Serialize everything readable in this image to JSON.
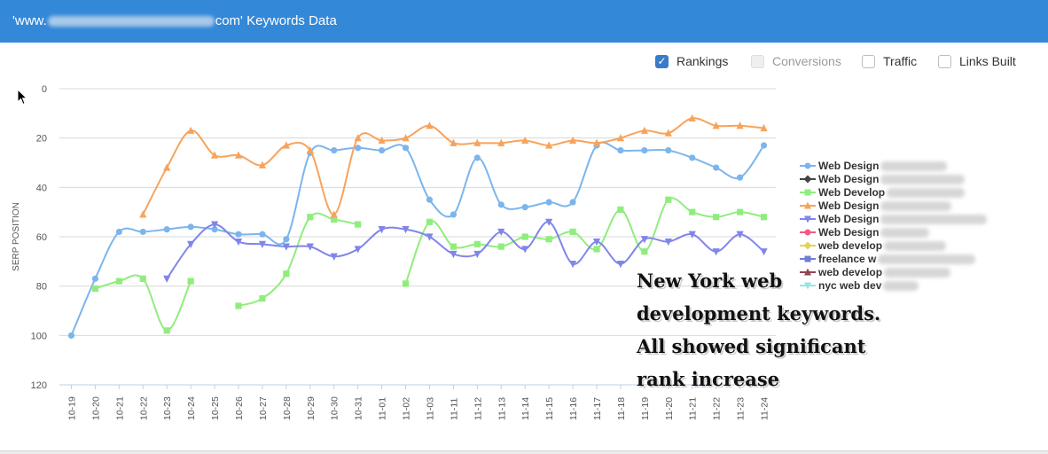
{
  "header": {
    "title_prefix": "'www.",
    "title_suffix": "com' Keywords Data"
  },
  "toggles": [
    {
      "label": "Rankings",
      "checked": true,
      "disabled": false
    },
    {
      "label": "Conversions",
      "checked": false,
      "disabled": true
    },
    {
      "label": "Traffic",
      "checked": false,
      "disabled": false
    },
    {
      "label": "Links Built",
      "checked": false,
      "disabled": false
    }
  ],
  "annotation": "New York web development keywords. All showed significant rank increase",
  "chart_data": {
    "type": "line",
    "ylabel": "SERP POSITION",
    "ylim": [
      0,
      120
    ],
    "y_reversed": true,
    "yticks": [
      0,
      20,
      40,
      60,
      80,
      100,
      120
    ],
    "grid": true,
    "legend_position": "right",
    "categories": [
      "10-19",
      "10-20",
      "10-21",
      "10-22",
      "10-23",
      "10-24",
      "10-25",
      "10-26",
      "10-27",
      "10-28",
      "10-29",
      "10-30",
      "10-31",
      "11-01",
      "11-02",
      "11-03",
      "11-11",
      "11-12",
      "11-13",
      "11-14",
      "11-15",
      "11-16",
      "11-17",
      "11-18",
      "11-19",
      "11-20",
      "11-21",
      "11-22",
      "11-23",
      "11-24"
    ],
    "series": [
      {
        "name": "Web Design",
        "color": "#7cb5ec",
        "marker": "circle",
        "values": [
          100,
          77,
          58,
          58,
          57,
          56,
          57,
          59,
          59,
          61,
          26,
          25,
          24,
          25,
          24,
          45,
          51,
          28,
          47,
          48,
          46,
          46,
          23,
          25,
          25,
          25,
          28,
          32,
          36,
          23
        ]
      },
      {
        "name": "Web Design",
        "color": "#434348",
        "marker": "diamond",
        "values": [
          null,
          null,
          null,
          null,
          null,
          null,
          null,
          null,
          null,
          null,
          null,
          null,
          null,
          null,
          null,
          null,
          null,
          null,
          null,
          null,
          null,
          null,
          null,
          null,
          null,
          null,
          null,
          null,
          null,
          null
        ]
      },
      {
        "name": "Web Develop",
        "color": "#90ed7d",
        "marker": "square",
        "values": [
          null,
          81,
          78,
          77,
          98,
          78,
          null,
          88,
          85,
          75,
          52,
          53,
          55,
          null,
          79,
          54,
          64,
          63,
          64,
          60,
          61,
          58,
          65,
          49,
          66,
          45,
          50,
          52,
          50,
          52
        ]
      },
      {
        "name": "Web Design",
        "color": "#f7a35c",
        "marker": "triangle",
        "values": [
          null,
          null,
          null,
          51,
          32,
          17,
          27,
          27,
          31,
          23,
          25,
          51,
          20,
          21,
          20,
          15,
          22,
          22,
          22,
          21,
          23,
          21,
          22,
          20,
          17,
          18,
          12,
          15,
          15,
          16
        ]
      },
      {
        "name": "Web Design",
        "color": "#8085e9",
        "marker": "triangle-down",
        "values": [
          null,
          null,
          null,
          null,
          77,
          63,
          55,
          62,
          63,
          64,
          64,
          68,
          65,
          57,
          57,
          60,
          67,
          67,
          58,
          65,
          54,
          71,
          62,
          71,
          61,
          62,
          59,
          66,
          59,
          66
        ]
      },
      {
        "name": "Web Design",
        "color": "#f15c80",
        "marker": "circle",
        "values": [
          null,
          null,
          null,
          null,
          null,
          null,
          null,
          null,
          null,
          null,
          null,
          null,
          null,
          null,
          null,
          null,
          null,
          null,
          null,
          null,
          null,
          null,
          null,
          null,
          null,
          null,
          null,
          null,
          null,
          null
        ]
      },
      {
        "name": "web develop",
        "color": "#e4d354",
        "marker": "diamond",
        "values": [
          null,
          null,
          null,
          null,
          null,
          null,
          null,
          null,
          null,
          null,
          null,
          null,
          null,
          null,
          null,
          null,
          null,
          null,
          null,
          null,
          null,
          null,
          null,
          null,
          null,
          null,
          null,
          null,
          null,
          null
        ]
      },
      {
        "name": "freelance w",
        "color": "#6f7fd0",
        "marker": "square",
        "values": [
          null,
          null,
          null,
          null,
          null,
          null,
          null,
          null,
          null,
          null,
          null,
          null,
          null,
          null,
          null,
          null,
          null,
          null,
          null,
          null,
          null,
          null,
          null,
          null,
          null,
          null,
          null,
          null,
          null,
          null
        ]
      },
      {
        "name": "web develop",
        "color": "#8d4653",
        "marker": "triangle",
        "values": [
          null,
          null,
          null,
          null,
          null,
          null,
          null,
          null,
          null,
          null,
          null,
          null,
          null,
          null,
          null,
          null,
          null,
          null,
          null,
          null,
          null,
          null,
          null,
          null,
          null,
          null,
          null,
          null,
          null,
          null
        ]
      },
      {
        "name": "nyc web dev",
        "color": "#91e8e1",
        "marker": "triangle-down",
        "values": [
          null,
          null,
          null,
          null,
          null,
          null,
          null,
          null,
          null,
          null,
          null,
          null,
          null,
          null,
          null,
          null,
          null,
          null,
          null,
          null,
          null,
          null,
          null,
          null,
          null,
          null,
          null,
          null,
          null,
          null
        ]
      }
    ]
  }
}
